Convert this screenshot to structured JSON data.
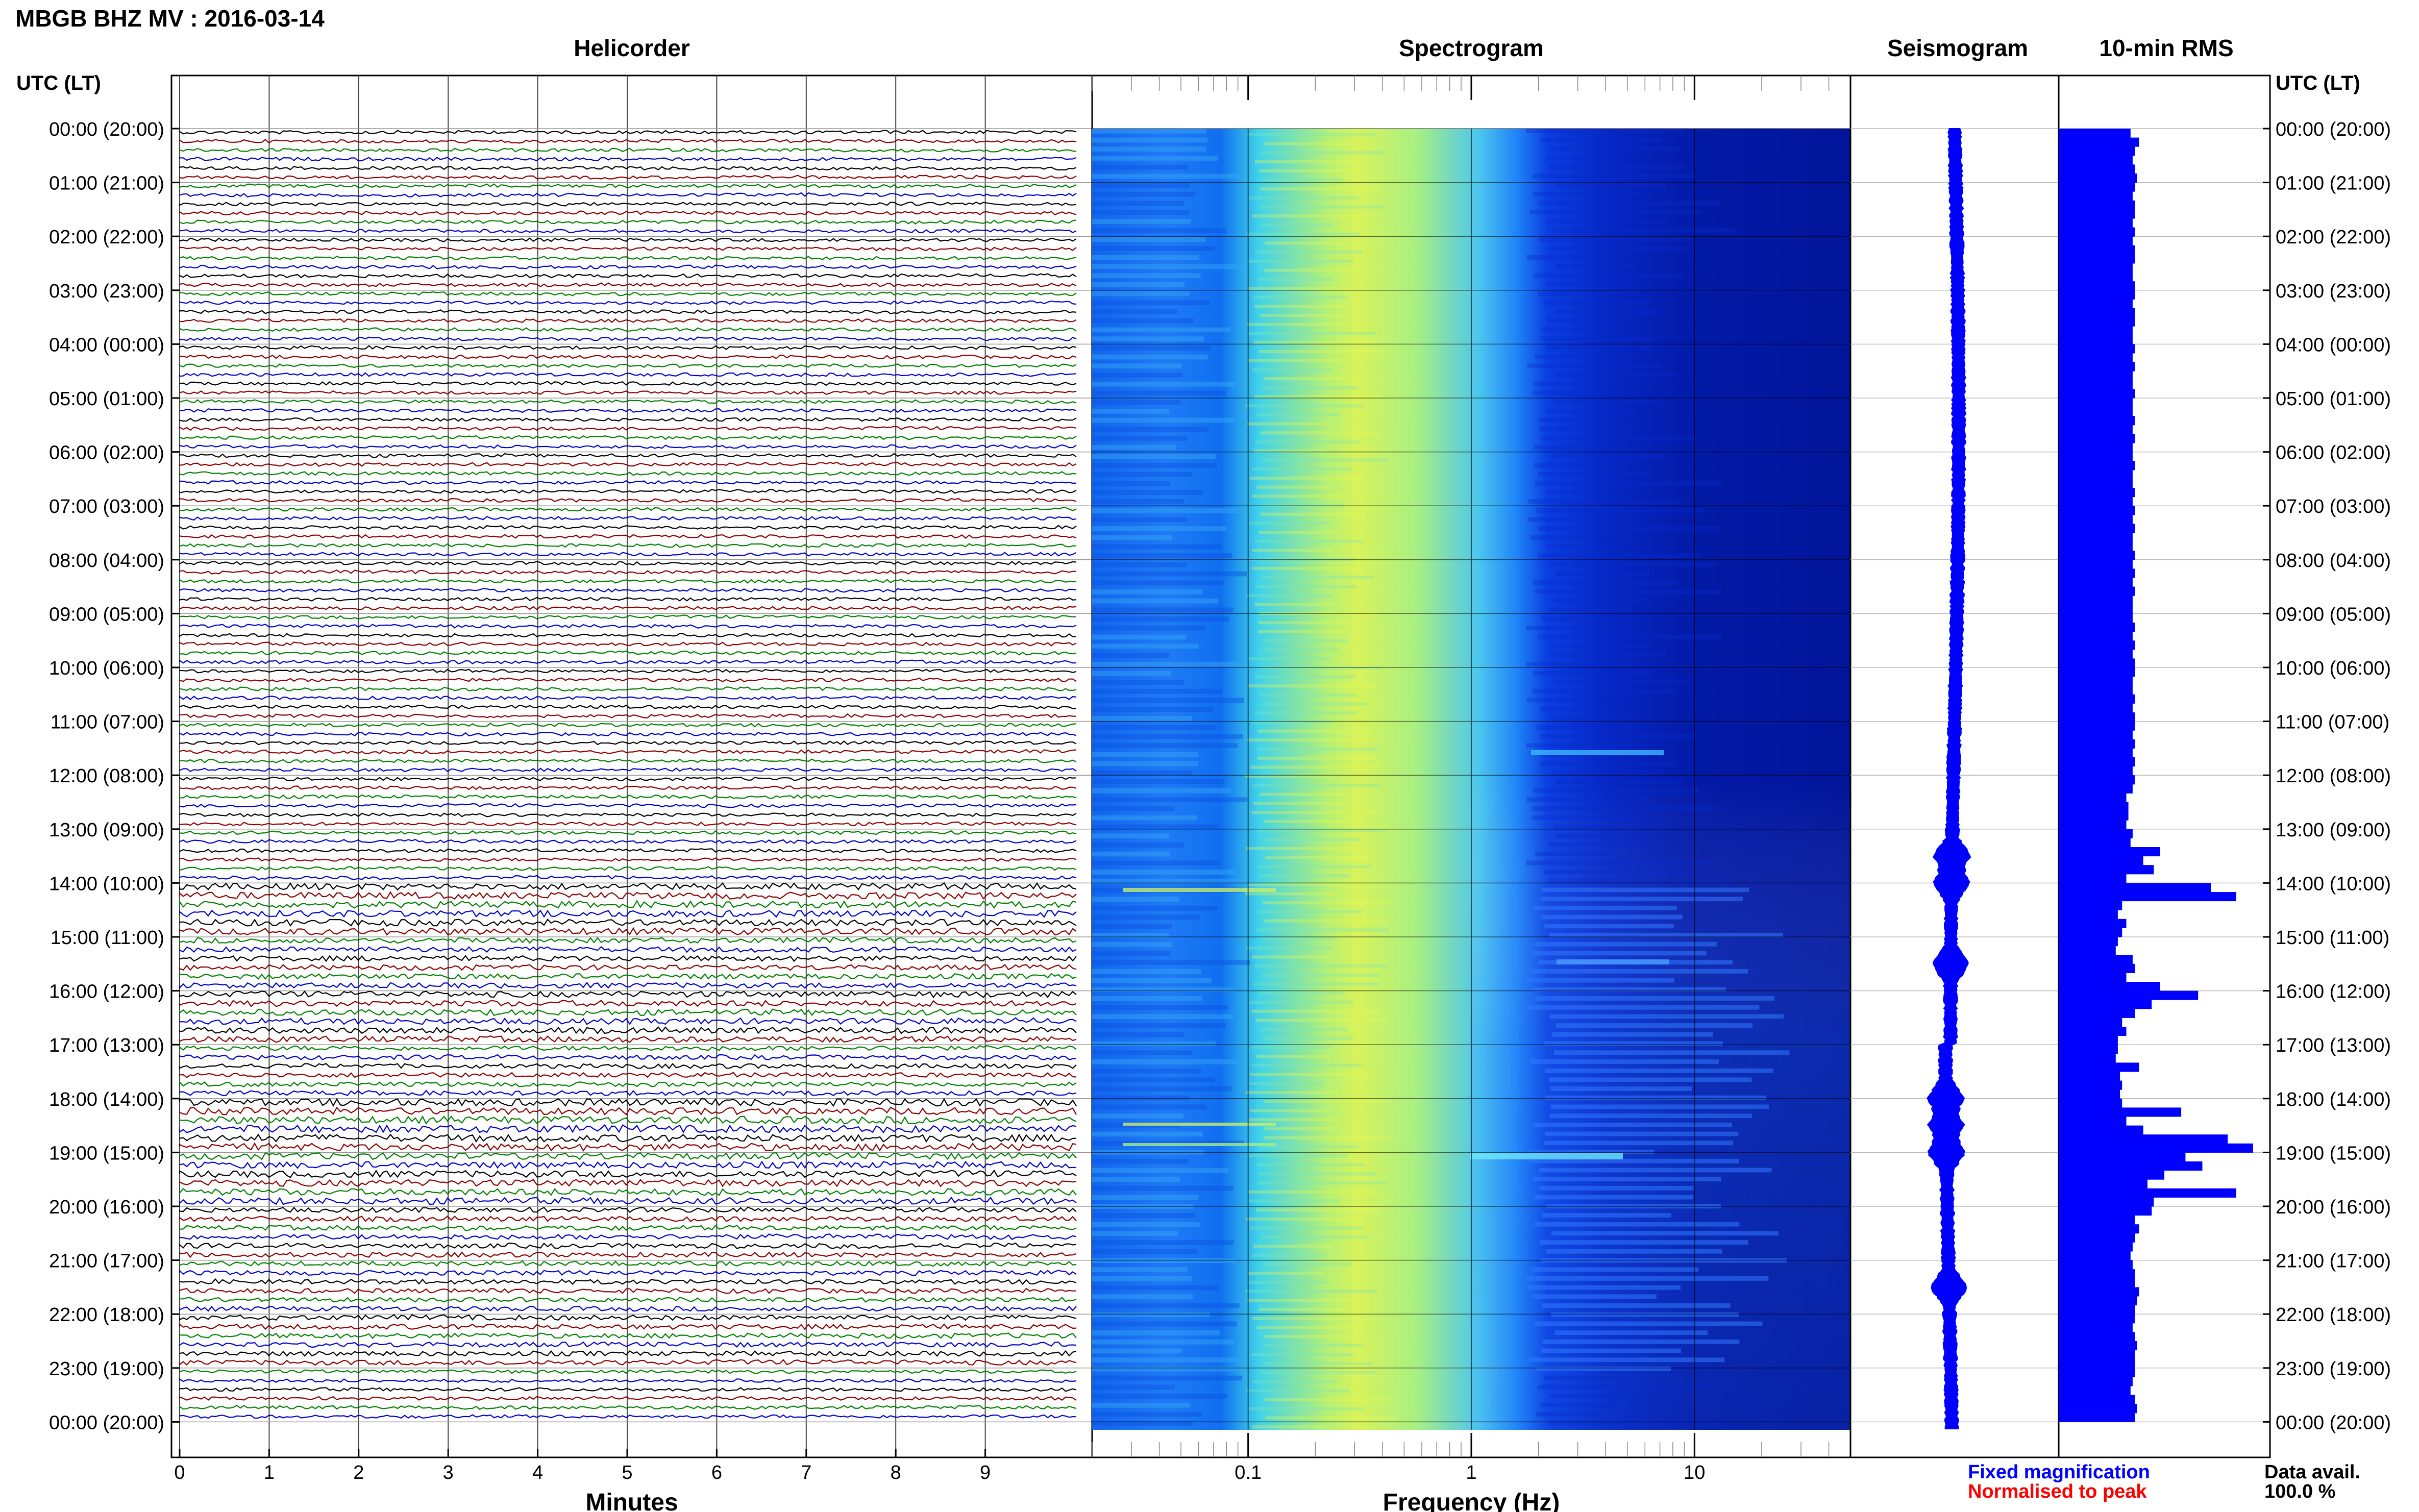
{
  "header": {
    "title": "MBGB BHZ MV : 2016-03-14",
    "tz_label_left": "UTC (LT)",
    "tz_label_right": "UTC (LT)"
  },
  "panels": {
    "helicorder_title": "Helicorder",
    "spectrogram_title": "Spectrogram",
    "seismogram_title": "Seismogram",
    "rms_title": "10-min RMS"
  },
  "legend": {
    "fixed_magnification": "Fixed magnification",
    "normalised_to_peak": "Normalised to peak",
    "data_avail_label": "Data avail.",
    "data_avail_value": "100.0 %"
  },
  "chart_data": [
    {
      "type": "line",
      "panel": "helicorder",
      "xlabel": "Minutes",
      "xlim": [
        0,
        10
      ],
      "x_ticks": [
        "0",
        "1",
        "2",
        "3",
        "4",
        "5",
        "6",
        "7",
        "8",
        "9"
      ],
      "y_tick_labels": [
        "00:00 (20:00)",
        "01:00 (21:00)",
        "02:00 (22:00)",
        "03:00 (23:00)",
        "04:00 (00:00)",
        "05:00 (01:00)",
        "06:00 (02:00)",
        "07:00 (03:00)",
        "08:00 (04:00)",
        "09:00 (05:00)",
        "10:00 (06:00)",
        "11:00 (07:00)",
        "12:00 (08:00)",
        "13:00 (09:00)",
        "14:00 (10:00)",
        "15:00 (11:00)",
        "16:00 (12:00)",
        "17:00 (13:00)",
        "18:00 (14:00)",
        "19:00 (15:00)",
        "20:00 (16:00)",
        "21:00 (17:00)",
        "22:00 (18:00)",
        "23:00 (19:00)",
        "00:00 (20:00)"
      ],
      "trace_colors": [
        "#000000",
        "#8b0000",
        "#008000",
        "#0000cc"
      ],
      "traces_per_hour": 6,
      "grid": true
    },
    {
      "type": "heatmap",
      "panel": "spectrogram",
      "xlabel": "Frequency (Hz)",
      "x_scale": "log",
      "xlim": [
        0.02,
        50
      ],
      "x_tick_labels": [
        "0.1",
        "1",
        "10"
      ],
      "colormap": [
        "#00008b",
        "#0000ff",
        "#0080ff",
        "#00ffff",
        "#80ff80",
        "#ffff00"
      ],
      "peak_frequency_hz": 0.3
    },
    {
      "type": "line",
      "panel": "seismogram",
      "color": "#0000ff",
      "events_utc": [
        "13:30",
        "14:00",
        "15:30",
        "18:00",
        "18:30",
        "19:00",
        "21:30"
      ]
    },
    {
      "type": "bar",
      "panel": "10-min RMS",
      "orientation": "horizontal",
      "color": "#0000ff",
      "hours_utc": [
        0,
        1,
        2,
        3,
        4,
        5,
        6,
        7,
        8,
        9,
        10,
        11,
        12,
        13,
        14,
        15,
        16,
        17,
        18,
        19,
        20,
        21,
        22,
        23
      ],
      "rms_relative_per_hour": [
        [
          0.34,
          0.38,
          0.36,
          0.35,
          0.36,
          0.37
        ],
        [
          0.36,
          0.35,
          0.36,
          0.36,
          0.35,
          0.36
        ],
        [
          0.35,
          0.36,
          0.36,
          0.35,
          0.35,
          0.36
        ],
        [
          0.36,
          0.35,
          0.36,
          0.36,
          0.35,
          0.35
        ],
        [
          0.36,
          0.35,
          0.36,
          0.35,
          0.35,
          0.36
        ],
        [
          0.35,
          0.35,
          0.36,
          0.35,
          0.36,
          0.35
        ],
        [
          0.35,
          0.36,
          0.35,
          0.35,
          0.36,
          0.35
        ],
        [
          0.36,
          0.35,
          0.36,
          0.35,
          0.35,
          0.36
        ],
        [
          0.35,
          0.36,
          0.35,
          0.36,
          0.35,
          0.35
        ],
        [
          0.35,
          0.36,
          0.35,
          0.36,
          0.35,
          0.36
        ],
        [
          0.36,
          0.35,
          0.35,
          0.36,
          0.35,
          0.36
        ],
        [
          0.36,
          0.35,
          0.36,
          0.35,
          0.36,
          0.35
        ],
        [
          0.36,
          0.35,
          0.32,
          0.33,
          0.33,
          0.32
        ],
        [
          0.35,
          0.34,
          0.48,
          0.4,
          0.45,
          0.32
        ],
        [
          0.72,
          0.84,
          0.3,
          0.28,
          0.32,
          0.3
        ],
        [
          0.28,
          0.27,
          0.35,
          0.36,
          0.32,
          0.48
        ],
        [
          0.66,
          0.44,
          0.36,
          0.3,
          0.32,
          0.28
        ],
        [
          0.28,
          0.27,
          0.38,
          0.29,
          0.3,
          0.29
        ],
        [
          0.3,
          0.58,
          0.32,
          0.4,
          0.8,
          0.92
        ],
        [
          0.6,
          0.68,
          0.5,
          0.42,
          0.84,
          0.45
        ],
        [
          0.44,
          0.36,
          0.38,
          0.36,
          0.35,
          0.34
        ],
        [
          0.35,
          0.36,
          0.36,
          0.38,
          0.37,
          0.36
        ],
        [
          0.36,
          0.35,
          0.36,
          0.37,
          0.36,
          0.36
        ],
        [
          0.36,
          0.35,
          0.34,
          0.36,
          0.37,
          0.36
        ]
      ]
    }
  ]
}
